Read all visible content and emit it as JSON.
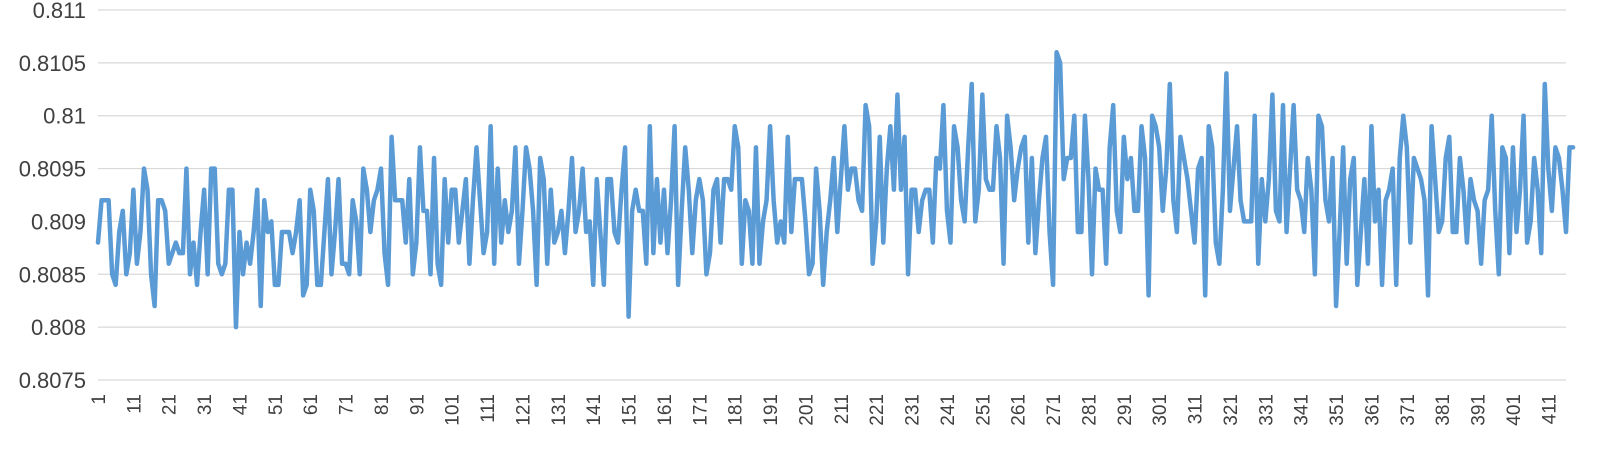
{
  "chart_data": {
    "type": "line",
    "title": "",
    "xlabel": "",
    "ylabel": "",
    "ylim": [
      0.8075,
      0.811
    ],
    "yticks": [
      "0.811",
      "0.8105",
      "0.81",
      "0.8095",
      "0.809",
      "0.8085",
      "0.808",
      "0.8075"
    ],
    "xlim": [
      1,
      416
    ],
    "xticks": [
      "1",
      "11",
      "21",
      "31",
      "41",
      "51",
      "61",
      "71",
      "81",
      "91",
      "101",
      "111",
      "121",
      "131",
      "141",
      "151",
      "161",
      "171",
      "181",
      "191",
      "201",
      "211",
      "221",
      "231",
      "241",
      "251",
      "261",
      "271",
      "281",
      "291",
      "301",
      "311",
      "321",
      "331",
      "341",
      "351",
      "361",
      "371",
      "381",
      "391",
      "401",
      "411"
    ],
    "grid": true,
    "legend": "none",
    "line_color": "#5b9bd5",
    "series": [
      {
        "values": [
          0.8088,
          0.8092,
          0.8092,
          0.8092,
          0.8085,
          0.8084,
          0.8089,
          0.8091,
          0.8085,
          0.8087,
          0.8093,
          0.8086,
          0.8089,
          0.8095,
          0.8093,
          0.8085,
          0.8082,
          0.8092,
          0.8092,
          0.8091,
          0.8086,
          0.8087,
          0.8088,
          0.8087,
          0.8087,
          0.8095,
          0.8085,
          0.8088,
          0.8084,
          0.8089,
          0.8093,
          0.8085,
          0.8095,
          0.8095,
          0.8086,
          0.8085,
          0.8086,
          0.8093,
          0.8093,
          0.808,
          0.8089,
          0.8085,
          0.8088,
          0.8086,
          0.8089,
          0.8093,
          0.8082,
          0.8092,
          0.8089,
          0.809,
          0.8084,
          0.8084,
          0.8089,
          0.8089,
          0.8089,
          0.8087,
          0.8089,
          0.8092,
          0.8083,
          0.8084,
          0.8093,
          0.8091,
          0.8084,
          0.8084,
          0.8089,
          0.8094,
          0.8085,
          0.8089,
          0.8094,
          0.8086,
          0.8086,
          0.8085,
          0.8092,
          0.809,
          0.8085,
          0.8095,
          0.8093,
          0.8089,
          0.8092,
          0.8093,
          0.8095,
          0.8087,
          0.8084,
          0.8098,
          0.8092,
          0.8092,
          0.8092,
          0.8088,
          0.8094,
          0.8085,
          0.8088,
          0.8097,
          0.8091,
          0.8091,
          0.8085,
          0.8096,
          0.8086,
          0.8084,
          0.8094,
          0.8088,
          0.8093,
          0.8093,
          0.8088,
          0.8091,
          0.8094,
          0.8086,
          0.8092,
          0.8097,
          0.8092,
          0.8087,
          0.8089,
          0.8099,
          0.8086,
          0.8095,
          0.8088,
          0.8092,
          0.8089,
          0.8091,
          0.8097,
          0.8086,
          0.8091,
          0.8097,
          0.8095,
          0.8091,
          0.8084,
          0.8096,
          0.8094,
          0.8086,
          0.8093,
          0.8088,
          0.8089,
          0.8091,
          0.8087,
          0.8091,
          0.8096,
          0.8089,
          0.8091,
          0.8095,
          0.8089,
          0.809,
          0.8084,
          0.8094,
          0.8089,
          0.8084,
          0.8094,
          0.8094,
          0.8089,
          0.8088,
          0.8093,
          0.8097,
          0.8081,
          0.8091,
          0.8093,
          0.8091,
          0.8091,
          0.8086,
          0.8099,
          0.8087,
          0.8094,
          0.8088,
          0.8093,
          0.8087,
          0.8092,
          0.8099,
          0.8084,
          0.8091,
          0.8097,
          0.8093,
          0.8087,
          0.8092,
          0.8094,
          0.8092,
          0.8085,
          0.8087,
          0.8093,
          0.8094,
          0.8088,
          0.8094,
          0.8094,
          0.8093,
          0.8099,
          0.8097,
          0.8086,
          0.8092,
          0.8091,
          0.8086,
          0.8097,
          0.8086,
          0.809,
          0.8092,
          0.8099,
          0.8092,
          0.8088,
          0.809,
          0.8088,
          0.8098,
          0.8089,
          0.8094,
          0.8094,
          0.8094,
          0.809,
          0.8085,
          0.8086,
          0.8095,
          0.8091,
          0.8084,
          0.8089,
          0.8092,
          0.8096,
          0.8089,
          0.8094,
          0.8099,
          0.8093,
          0.8095,
          0.8095,
          0.8092,
          0.8091,
          0.8101,
          0.8099,
          0.8086,
          0.809,
          0.8098,
          0.8088,
          0.8095,
          0.8099,
          0.8093,
          0.8102,
          0.8093,
          0.8098,
          0.8085,
          0.8093,
          0.8093,
          0.8089,
          0.8092,
          0.8093,
          0.8093,
          0.8088,
          0.8096,
          0.8095,
          0.8101,
          0.8091,
          0.8088,
          0.8099,
          0.8097,
          0.8092,
          0.809,
          0.8097,
          0.8103,
          0.809,
          0.8093,
          0.8102,
          0.8094,
          0.8093,
          0.8093,
          0.8099,
          0.8096,
          0.8086,
          0.81,
          0.8097,
          0.8092,
          0.8095,
          0.8097,
          0.8098,
          0.8088,
          0.8096,
          0.8087,
          0.8092,
          0.8096,
          0.8098,
          0.8089,
          0.8084,
          0.8106,
          0.8105,
          0.8094,
          0.8096,
          0.8096,
          0.81,
          0.8089,
          0.8089,
          0.81,
          0.8094,
          0.8085,
          0.8095,
          0.8093,
          0.8093,
          0.8086,
          0.8097,
          0.8101,
          0.8091,
          0.8089,
          0.8098,
          0.8094,
          0.8096,
          0.8091,
          0.8091,
          0.8099,
          0.8096,
          0.8083,
          0.81,
          0.8099,
          0.8097,
          0.8091,
          0.8095,
          0.8103,
          0.8092,
          0.8089,
          0.8098,
          0.8096,
          0.8094,
          0.8091,
          0.8088,
          0.8095,
          0.8096,
          0.8083,
          0.8099,
          0.8097,
          0.8088,
          0.8086,
          0.8093,
          0.8104,
          0.8091,
          0.8095,
          0.8099,
          0.8092,
          0.809,
          0.809,
          0.809,
          0.81,
          0.8086,
          0.8094,
          0.809,
          0.8094,
          0.8102,
          0.8091,
          0.809,
          0.8101,
          0.8089,
          0.8095,
          0.8101,
          0.8093,
          0.8092,
          0.8089,
          0.8096,
          0.8093,
          0.8085,
          0.81,
          0.8099,
          0.8092,
          0.809,
          0.8096,
          0.8082,
          0.8089,
          0.8097,
          0.8086,
          0.8094,
          0.8096,
          0.8084,
          0.8089,
          0.8094,
          0.8086,
          0.8099,
          0.809,
          0.8093,
          0.8084,
          0.8092,
          0.8093,
          0.8095,
          0.8084,
          0.8096,
          0.81,
          0.8097,
          0.8088,
          0.8096,
          0.8095,
          0.8094,
          0.8092,
          0.8083,
          0.8099,
          0.8094,
          0.8089,
          0.809,
          0.8096,
          0.8098,
          0.8089,
          0.8089,
          0.8096,
          0.8093,
          0.8088,
          0.8094,
          0.8092,
          0.8091,
          0.8086,
          0.8092,
          0.8093,
          0.81,
          0.8091,
          0.8085,
          0.8097,
          0.8096,
          0.8087,
          0.8097,
          0.8089,
          0.8093,
          0.81,
          0.8088,
          0.809,
          0.8096,
          0.8093,
          0.8087,
          0.8103,
          0.8095,
          0.8091,
          0.8097,
          0.8096,
          0.8093,
          0.8089,
          0.8097,
          0.8097
        ]
      }
    ]
  }
}
